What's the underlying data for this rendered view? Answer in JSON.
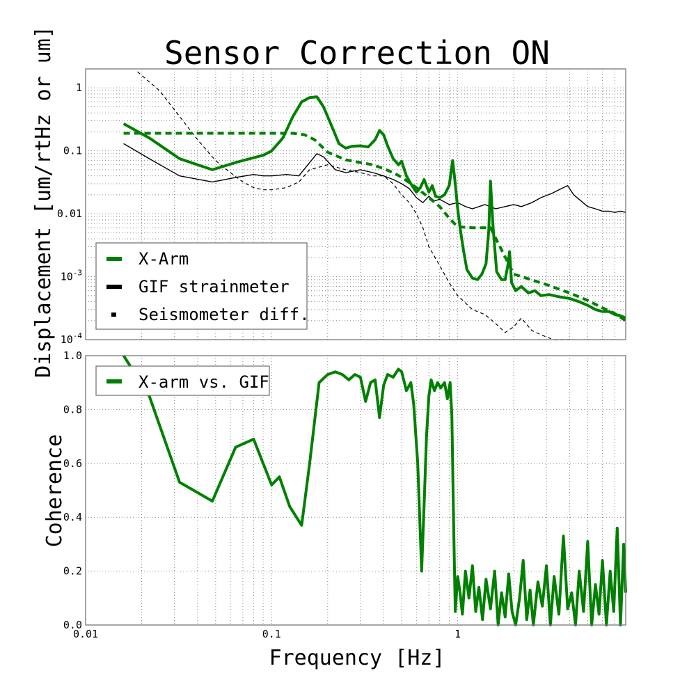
{
  "chart_data": [
    {
      "type": "line",
      "title": "Sensor Correction ON",
      "ylabel": "Displacement [um/rtHz or um]",
      "xscale": "log",
      "yscale": "log",
      "xlim": [
        0.01,
        8
      ],
      "ylim": [
        0.0001,
        2
      ],
      "x_ticks": [
        "0.01",
        "0.1",
        "1"
      ],
      "y_ticks": [
        "10^-4",
        "10^-3",
        "0.01",
        "0.1",
        "1"
      ],
      "grid": true,
      "legend_placement": "lower-left",
      "series": [
        {
          "name": "X-Arm",
          "style": "solid-thick",
          "color": "#008000",
          "x": [
            0.016,
            0.022,
            0.032,
            0.048,
            0.065,
            0.09,
            0.1,
            0.115,
            0.13,
            0.145,
            0.16,
            0.175,
            0.19,
            0.21,
            0.23,
            0.25,
            0.27,
            0.3,
            0.33,
            0.36,
            0.38,
            0.4,
            0.42,
            0.45,
            0.48,
            0.5,
            0.53,
            0.56,
            0.6,
            0.63,
            0.66,
            0.7,
            0.73,
            0.76,
            0.8,
            0.85,
            0.9,
            0.94,
            0.97,
            1.0,
            1.03,
            1.07,
            1.12,
            1.2,
            1.28,
            1.35,
            1.42,
            1.47,
            1.5,
            1.55,
            1.62,
            1.72,
            1.8,
            1.86,
            1.9,
            1.95,
            2.05,
            2.2,
            2.4,
            2.6,
            2.8,
            3.1,
            3.5,
            4.0,
            4.5,
            5.0,
            5.5,
            6.0,
            6.5,
            7.0,
            7.5,
            8.0
          ],
          "values": [
            0.27,
            0.16,
            0.075,
            0.05,
            0.066,
            0.085,
            0.1,
            0.16,
            0.35,
            0.6,
            0.7,
            0.72,
            0.5,
            0.25,
            0.13,
            0.11,
            0.118,
            0.12,
            0.115,
            0.15,
            0.21,
            0.18,
            0.12,
            0.075,
            0.06,
            0.068,
            0.04,
            0.03,
            0.022,
            0.026,
            0.035,
            0.022,
            0.028,
            0.019,
            0.018,
            0.02,
            0.028,
            0.07,
            0.03,
            0.012,
            0.006,
            0.0028,
            0.0013,
            0.00095,
            0.0009,
            0.0011,
            0.0016,
            0.0055,
            0.033,
            0.006,
            0.0012,
            0.0009,
            0.0009,
            0.0015,
            0.0025,
            0.0008,
            0.0006,
            0.0007,
            0.00055,
            0.0006,
            0.0005,
            0.00052,
            0.00048,
            0.00045,
            0.0004,
            0.00035,
            0.0003,
            0.00028,
            0.00028,
            0.00025,
            0.00024,
            0.00022
          ]
        },
        {
          "name": "X-Arm",
          "style": "dashed-thick",
          "color": "#008000",
          "x": [
            0.016,
            0.03,
            0.06,
            0.1,
            0.13,
            0.15,
            0.17,
            0.2,
            0.25,
            0.3,
            0.35,
            0.4,
            0.45,
            0.5,
            0.6,
            0.7,
            0.8,
            0.9,
            1.0,
            1.2,
            1.5,
            2.0,
            3.0,
            4.0,
            5.0,
            6.0,
            7.0,
            8.0
          ],
          "values": [
            0.19,
            0.19,
            0.19,
            0.19,
            0.19,
            0.18,
            0.15,
            0.095,
            0.072,
            0.065,
            0.06,
            0.052,
            0.045,
            0.038,
            0.026,
            0.018,
            0.013,
            0.0085,
            0.0062,
            0.006,
            0.006,
            0.0011,
            0.00075,
            0.00055,
            0.00042,
            0.00032,
            0.00026,
            0.0002
          ]
        },
        {
          "name": "GIF strainmeter",
          "style": "solid-thin",
          "color": "#000000",
          "x": [
            0.016,
            0.022,
            0.032,
            0.048,
            0.065,
            0.08,
            0.09,
            0.1,
            0.12,
            0.14,
            0.16,
            0.175,
            0.19,
            0.22,
            0.25,
            0.3,
            0.35,
            0.4,
            0.45,
            0.5,
            0.55,
            0.6,
            0.65,
            0.7,
            0.75,
            0.8,
            0.9,
            1.0,
            1.1,
            1.2,
            1.4,
            1.6,
            1.8,
            2.0,
            2.2,
            2.5,
            2.8,
            3.2,
            3.6,
            3.9,
            4.2,
            4.6,
            5.0,
            5.5,
            6.0,
            6.5,
            7.0,
            7.5,
            8.0
          ],
          "values": [
            0.13,
            0.075,
            0.04,
            0.032,
            0.038,
            0.042,
            0.04,
            0.04,
            0.042,
            0.04,
            0.065,
            0.09,
            0.08,
            0.05,
            0.045,
            0.05,
            0.045,
            0.04,
            0.035,
            0.03,
            0.025,
            0.018,
            0.015,
            0.019,
            0.016,
            0.017,
            0.014,
            0.015,
            0.013,
            0.012,
            0.014,
            0.012,
            0.013,
            0.014,
            0.013,
            0.015,
            0.018,
            0.021,
            0.025,
            0.028,
            0.02,
            0.016,
            0.013,
            0.012,
            0.011,
            0.011,
            0.0105,
            0.011,
            0.0105
          ]
        },
        {
          "name": "Seismometer diff.",
          "style": "dashed-thin",
          "color": "#000000",
          "x": [
            0.019,
            0.025,
            0.03,
            0.04,
            0.05,
            0.06,
            0.07,
            0.08,
            0.09,
            0.1,
            0.12,
            0.14,
            0.16,
            0.2,
            0.25,
            0.3,
            0.35,
            0.4,
            0.45,
            0.5,
            0.55,
            0.6,
            0.65,
            0.7,
            0.8,
            0.9,
            1.0,
            1.2,
            1.4,
            1.6,
            1.8,
            2.0,
            2.2,
            2.5,
            2.8,
            3.0,
            3.3,
            3.6,
            4.0,
            4.2
          ],
          "values": [
            1.8,
            0.9,
            0.45,
            0.15,
            0.07,
            0.045,
            0.032,
            0.026,
            0.024,
            0.024,
            0.026,
            0.032,
            0.05,
            0.06,
            0.05,
            0.045,
            0.04,
            0.04,
            0.03,
            0.02,
            0.015,
            0.01,
            0.006,
            0.003,
            0.0015,
            0.0008,
            0.0005,
            0.0003,
            0.00025,
            0.00018,
            0.00013,
            0.00016,
            0.00022,
            0.00014,
            0.00012,
            0.00011,
            0.0001,
            0.0001,
            0.0001,
            0.0001
          ]
        }
      ],
      "legend": [
        "X-Arm",
        "GIF strainmeter",
        "Seismometer diff."
      ]
    },
    {
      "type": "line",
      "xlabel": "Frequency [Hz]",
      "ylabel": "Coherence",
      "xscale": "log",
      "xlim": [
        0.01,
        8
      ],
      "ylim": [
        0.0,
        1.0
      ],
      "x_ticks": [
        "0.01",
        "0.1",
        "1"
      ],
      "y_ticks": [
        "0.0",
        "0.2",
        "0.4",
        "0.6",
        "0.8",
        "1.0"
      ],
      "grid": true,
      "legend_placement": "upper-left",
      "series": [
        {
          "name": "X-arm vs. GIF",
          "color": "#008000",
          "x": [
            0.016,
            0.022,
            0.032,
            0.048,
            0.064,
            0.08,
            0.09,
            0.1,
            0.11,
            0.125,
            0.145,
            0.16,
            0.18,
            0.2,
            0.22,
            0.24,
            0.26,
            0.28,
            0.3,
            0.32,
            0.34,
            0.36,
            0.38,
            0.4,
            0.42,
            0.45,
            0.48,
            0.5,
            0.53,
            0.56,
            0.58,
            0.61,
            0.64,
            0.66,
            0.68,
            0.7,
            0.72,
            0.75,
            0.78,
            0.81,
            0.85,
            0.88,
            0.91,
            0.93,
            0.95,
            0.97,
            1.0,
            1.03,
            1.06,
            1.1,
            1.15,
            1.2,
            1.25,
            1.3,
            1.36,
            1.42,
            1.5,
            1.58,
            1.65,
            1.72,
            1.8,
            1.88,
            1.96,
            2.05,
            2.15,
            2.25,
            2.35,
            2.45,
            2.55,
            2.7,
            2.85,
            3.0,
            3.15,
            3.3,
            3.5,
            3.7,
            3.9,
            4.1,
            4.3,
            4.5,
            4.75,
            5.0,
            5.25,
            5.5,
            5.75,
            6.0,
            6.3,
            6.6,
            6.9,
            7.2,
            7.5,
            7.8,
            8.0
          ],
          "values": [
            1.0,
            0.85,
            0.53,
            0.46,
            0.66,
            0.69,
            0.6,
            0.52,
            0.55,
            0.44,
            0.37,
            0.6,
            0.9,
            0.93,
            0.94,
            0.93,
            0.91,
            0.93,
            0.92,
            0.83,
            0.9,
            0.91,
            0.77,
            0.89,
            0.93,
            0.92,
            0.95,
            0.94,
            0.87,
            0.9,
            0.82,
            0.6,
            0.2,
            0.45,
            0.7,
            0.85,
            0.91,
            0.87,
            0.9,
            0.88,
            0.9,
            0.84,
            0.9,
            0.78,
            0.4,
            0.05,
            0.18,
            0.12,
            0.04,
            0.2,
            0.1,
            0.22,
            0.05,
            0.14,
            0.02,
            0.17,
            0.06,
            0.2,
            0.0,
            0.12,
            0.03,
            0.19,
            0.05,
            0.0,
            0.1,
            0.24,
            0.02,
            0.13,
            0.0,
            0.16,
            0.07,
            0.22,
            0.0,
            0.18,
            0.04,
            0.33,
            0.06,
            0.12,
            0.0,
            0.2,
            0.05,
            0.31,
            0.0,
            0.15,
            0.04,
            0.24,
            0.0,
            0.2,
            0.05,
            0.36,
            0.0,
            0.3,
            0.12
          ]
        }
      ],
      "legend": [
        "X-arm vs. GIF"
      ]
    }
  ]
}
